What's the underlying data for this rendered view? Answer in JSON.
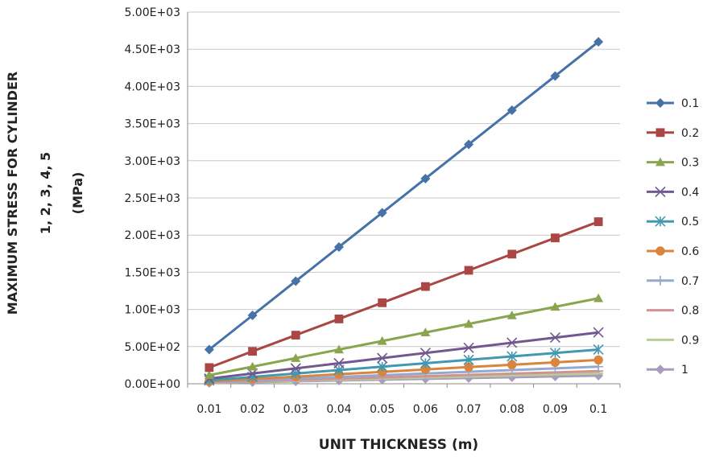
{
  "chart_data": {
    "type": "line",
    "title": "",
    "xlabel": "UNIT THICKNESS (m)",
    "ylabel_lines": [
      "MAXIMUM STRESS FOR CYLINDER",
      "1, 2, 3, 4, 5",
      "(MPa)"
    ],
    "ylim": [
      0,
      5000
    ],
    "y_ticks": [
      "0.00E+00",
      "5.00E+02",
      "1.00E+03",
      "1.50E+03",
      "2.00E+03",
      "2.50E+03",
      "3.00E+03",
      "3.50E+03",
      "4.00E+03",
      "4.50E+03",
      "5.00E+03"
    ],
    "categories": [
      "0.01",
      "0.02",
      "0.03",
      "0.04",
      "0.05",
      "0.06",
      "0.07",
      "0.08",
      "0.09",
      "0.1"
    ],
    "grid": true,
    "legend_position": "right",
    "series": [
      {
        "name": "0.1",
        "color": "#4572A7",
        "marker": "diamond",
        "values": [
          460,
          920,
          1380,
          1840,
          2300,
          2760,
          3220,
          3680,
          4140,
          4600
        ]
      },
      {
        "name": "0.2",
        "color": "#AA4643",
        "marker": "square",
        "values": [
          218,
          436,
          654,
          872,
          1090,
          1308,
          1526,
          1744,
          1962,
          2180
        ]
      },
      {
        "name": "0.3",
        "color": "#89A54E",
        "marker": "triangle",
        "values": [
          115,
          230,
          345,
          460,
          575,
          690,
          805,
          920,
          1035,
          1150
        ]
      },
      {
        "name": "0.4",
        "color": "#71588F",
        "marker": "x",
        "values": [
          69,
          138,
          207,
          276,
          345,
          414,
          483,
          552,
          621,
          690
        ]
      },
      {
        "name": "0.5",
        "color": "#4198AF",
        "marker": "star",
        "values": [
          46,
          92,
          138,
          184,
          230,
          276,
          322,
          368,
          414,
          460
        ]
      },
      {
        "name": "0.6",
        "color": "#DB843D",
        "marker": "circle",
        "values": [
          32,
          64,
          96,
          128,
          160,
          192,
          224,
          256,
          288,
          320
        ]
      },
      {
        "name": "0.7",
        "color": "#93A9CF",
        "marker": "plus",
        "values": [
          23,
          46,
          69,
          92,
          115,
          138,
          161,
          184,
          207,
          230
        ]
      },
      {
        "name": "0.8",
        "color": "#D19392",
        "marker": "dash",
        "values": [
          17,
          34,
          51,
          68,
          85,
          102,
          119,
          136,
          153,
          170
        ]
      },
      {
        "name": "0.9",
        "color": "#B9CD96",
        "marker": "dash",
        "values": [
          14,
          28,
          42,
          56,
          70,
          84,
          98,
          112,
          126,
          140
        ]
      },
      {
        "name": "1",
        "color": "#A99BBD",
        "marker": "diamond",
        "values": [
          11,
          22,
          33,
          44,
          55,
          66,
          77,
          88,
          99,
          110
        ]
      }
    ]
  }
}
